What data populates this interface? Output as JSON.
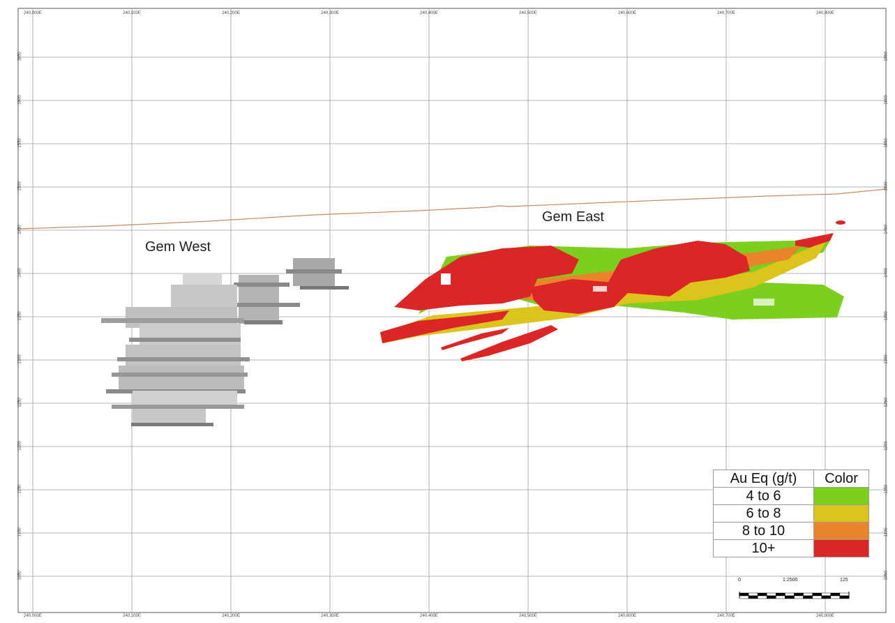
{
  "map": {
    "top_ticks": [
      "240,000E",
      "240,100E",
      "240,200E",
      "240,300E",
      "240,400E",
      "240,500E",
      "240,600E",
      "240,700E",
      "240,800E"
    ],
    "bottom_ticks": [
      "240,000E",
      "240,100E",
      "240,200E",
      "240,300E",
      "240,400E",
      "240,500E",
      "240,600E",
      "240,700E",
      "240,800E"
    ],
    "left_ticks": [
      "1650",
      "1600",
      "1550",
      "1500",
      "1450",
      "1400",
      "1350",
      "1300",
      "1250",
      "1200",
      "1150",
      "1100",
      "1050"
    ],
    "right_ticks": [
      "1650",
      "1600",
      "1550",
      "1500",
      "1450",
      "1400",
      "1350",
      "1300",
      "1250",
      "1200",
      "1150",
      "1100",
      "1050"
    ],
    "labels": {
      "gem_west": "Gem West",
      "gem_east": "Gem East"
    },
    "colors": {
      "grid": "#9a9a9a",
      "topography": "#c8885a",
      "gem_west": "#bdbdbd",
      "grade_4_6": "#7ccf1e",
      "grade_6_8": "#dcc41c",
      "grade_8_10": "#e8842a",
      "grade_10plus": "#dc2626"
    }
  },
  "legend": {
    "header_grade": "Au Eq (g/t)",
    "header_color": "Color",
    "rows": [
      {
        "label": "4 to 6",
        "color": "#7ccf1e"
      },
      {
        "label": "6 to 8",
        "color": "#dcc41c"
      },
      {
        "label": "8 to 10",
        "color": "#e8842a"
      },
      {
        "label": "10+",
        "color": "#dc2626"
      }
    ]
  },
  "scalebar": {
    "start": "0",
    "mid": "1:2500",
    "end": "125"
  }
}
